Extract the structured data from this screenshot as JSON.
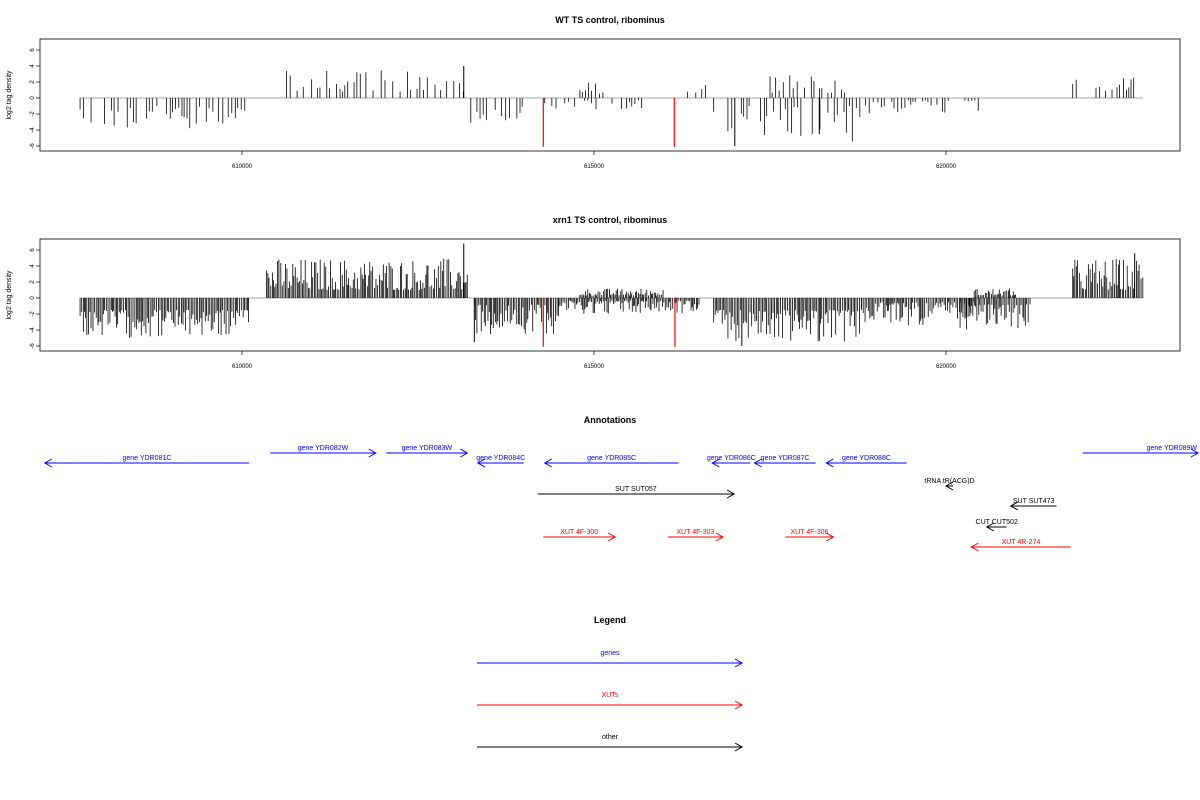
{
  "colors": {
    "genes": "#0000ff",
    "xuts": "#ff0000",
    "other": "#000000",
    "zero_line": "#888888"
  },
  "chart_data": [
    {
      "type": "bar",
      "title": "WT TS control, ribominus",
      "ylabel": "log2 tag density",
      "xlim": [
        607500,
        623500
      ],
      "ylim": [
        -6.2,
        7
      ],
      "x_ticks": [
        "610000",
        "615000",
        "620000"
      ],
      "y_ticks": [
        "6",
        "4",
        "2",
        "0",
        "-2",
        "-4",
        "-6"
      ],
      "grid": false,
      "density": "sparse",
      "regions": [
        {
          "x0": 607700,
          "x1": 610050,
          "sign": -1,
          "lo": 1.0,
          "hi": 3.8
        },
        {
          "x0": 610600,
          "x1": 613200,
          "sign": 1,
          "lo": 0.8,
          "hi": 3.5
        },
        {
          "x0": 613250,
          "x1": 614000,
          "sign": -1,
          "lo": 1.0,
          "hi": 4.0
        },
        {
          "x0": 614300,
          "x1": 615700,
          "sign": -1,
          "lo": 0.3,
          "hi": 1.8
        },
        {
          "x0": 614800,
          "x1": 615300,
          "sign": 1,
          "lo": 0.5,
          "hi": 2.0
        },
        {
          "x0": 616300,
          "x1": 616600,
          "sign": 1,
          "lo": 0.5,
          "hi": 2.5
        },
        {
          "x0": 616700,
          "x1": 618800,
          "sign": -1,
          "lo": 1.0,
          "hi": 5.5
        },
        {
          "x0": 617500,
          "x1": 618600,
          "sign": 1,
          "lo": 0.6,
          "hi": 3.0
        },
        {
          "x0": 618800,
          "x1": 620600,
          "sign": -1,
          "lo": 0.3,
          "hi": 2.0
        },
        {
          "x0": 621800,
          "x1": 622800,
          "sign": 1,
          "lo": 0.8,
          "hi": 2.6
        }
      ],
      "highlight_bars": [
        {
          "x": 614280,
          "y": -6.1,
          "color": "#ff0000"
        },
        {
          "x": 616140,
          "y": -6.1,
          "color": "#ff0000"
        }
      ],
      "tall_bars": [
        {
          "x": 613150,
          "y": 4.0
        },
        {
          "x": 617000,
          "y": -6.0
        },
        {
          "x": 618200,
          "y": -4.5
        }
      ]
    },
    {
      "type": "bar",
      "title": "xrn1 TS control, ribominus",
      "ylabel": "log2 tag density",
      "xlim": [
        607500,
        623500
      ],
      "ylim": [
        -6.2,
        7
      ],
      "x_ticks": [
        "610000",
        "615000",
        "620000"
      ],
      "y_ticks": [
        "6",
        "4",
        "2",
        "0",
        "-2",
        "-4",
        "-6"
      ],
      "grid": false,
      "density": "dense",
      "regions": [
        {
          "x0": 607700,
          "x1": 610100,
          "sign": -1,
          "lo": 1.5,
          "hi": 5.0
        },
        {
          "x0": 610350,
          "x1": 613200,
          "sign": 1,
          "lo": 1.0,
          "hi": 5.0
        },
        {
          "x0": 613300,
          "x1": 614500,
          "sign": -1,
          "lo": 0.8,
          "hi": 4.5
        },
        {
          "x0": 614500,
          "x1": 616500,
          "sign": -1,
          "lo": 0.3,
          "hi": 2.0
        },
        {
          "x0": 614800,
          "x1": 616000,
          "sign": 1,
          "lo": 0.3,
          "hi": 1.2
        },
        {
          "x0": 616700,
          "x1": 618800,
          "sign": -1,
          "lo": 1.5,
          "hi": 5.5
        },
        {
          "x0": 618800,
          "x1": 620400,
          "sign": -1,
          "lo": 0.5,
          "hi": 3.5
        },
        {
          "x0": 620200,
          "x1": 621200,
          "sign": -1,
          "lo": 0.8,
          "hi": 4.0
        },
        {
          "x0": 620400,
          "x1": 621000,
          "sign": 1,
          "lo": 0.3,
          "hi": 1.2
        },
        {
          "x0": 621800,
          "x1": 622800,
          "sign": 1,
          "lo": 1.0,
          "hi": 5.0
        }
      ],
      "highlight_bars": [
        {
          "x": 614280,
          "y": -6.1,
          "color": "#ff0000"
        },
        {
          "x": 616150,
          "y": -6.1,
          "color": "#ff0000"
        }
      ],
      "tall_bars": [
        {
          "x": 613150,
          "y": 6.8
        },
        {
          "x": 613300,
          "y": -5.5
        },
        {
          "x": 617100,
          "y": -6.0
        },
        {
          "x": 622680,
          "y": 5.6
        }
      ]
    }
  ],
  "annotations": {
    "title": "Annotations",
    "xlim": [
      607500,
      623500
    ],
    "items": [
      {
        "label": "gene YDR081C",
        "start": 607200,
        "end": 610100,
        "dir": "left",
        "row": 2,
        "kind": "gene"
      },
      {
        "label": "gene YDR082W",
        "start": 610400,
        "end": 611900,
        "dir": "right",
        "row": 1,
        "kind": "gene"
      },
      {
        "label": "gene YDR083W",
        "start": 612050,
        "end": 613200,
        "dir": "right",
        "row": 1,
        "kind": "gene"
      },
      {
        "label": "gene YDR084C",
        "start": 613350,
        "end": 614000,
        "dir": "left",
        "row": 2,
        "kind": "gene"
      },
      {
        "label": "gene YDR085C",
        "start": 614300,
        "end": 616200,
        "dir": "left",
        "row": 2,
        "kind": "gene"
      },
      {
        "label": "gene YDR086C",
        "start": 616680,
        "end": 617220,
        "dir": "left",
        "row": 2,
        "kind": "gene"
      },
      {
        "label": "gene YDR087C",
        "start": 617280,
        "end": 618150,
        "dir": "left",
        "row": 2,
        "kind": "gene"
      },
      {
        "label": "gene YDR088C",
        "start": 618300,
        "end": 619440,
        "dir": "left",
        "row": 2,
        "kind": "gene"
      },
      {
        "label": "gene YDR089W",
        "start": 621940,
        "end": 623600,
        "dir": "right",
        "row": 1,
        "kind": "gene"
      },
      {
        "label": "tRNA tR(ACG)D",
        "start": 620000,
        "end": 620100,
        "dir": "left",
        "row": 3,
        "kind": "other"
      },
      {
        "label": "SUT SUT057",
        "start": 614200,
        "end": 616990,
        "dir": "right",
        "row": 4,
        "kind": "other"
      },
      {
        "label": "SUT SUT473",
        "start": 620920,
        "end": 621570,
        "dir": "left",
        "row": 5,
        "kind": "other"
      },
      {
        "label": "CUT CUT502",
        "start": 620580,
        "end": 620860,
        "dir": "left",
        "row": 6,
        "kind": "other"
      },
      {
        "label": "XUT 4F-300",
        "start": 614280,
        "end": 615300,
        "dir": "right",
        "row": 7,
        "kind": "xut"
      },
      {
        "label": "XUT 4F-303",
        "start": 616050,
        "end": 616830,
        "dir": "right",
        "row": 7,
        "kind": "xut"
      },
      {
        "label": "XUT 4F-306",
        "start": 617720,
        "end": 618400,
        "dir": "right",
        "row": 7,
        "kind": "xut"
      },
      {
        "label": "XUT 4R-274",
        "start": 620360,
        "end": 621770,
        "dir": "left",
        "row": 8,
        "kind": "xut"
      }
    ]
  },
  "legend": {
    "title": "Legend",
    "items": [
      {
        "label": "genes",
        "kind": "gene"
      },
      {
        "label": "XUTs",
        "kind": "xut"
      },
      {
        "label": "other",
        "kind": "other"
      }
    ]
  }
}
